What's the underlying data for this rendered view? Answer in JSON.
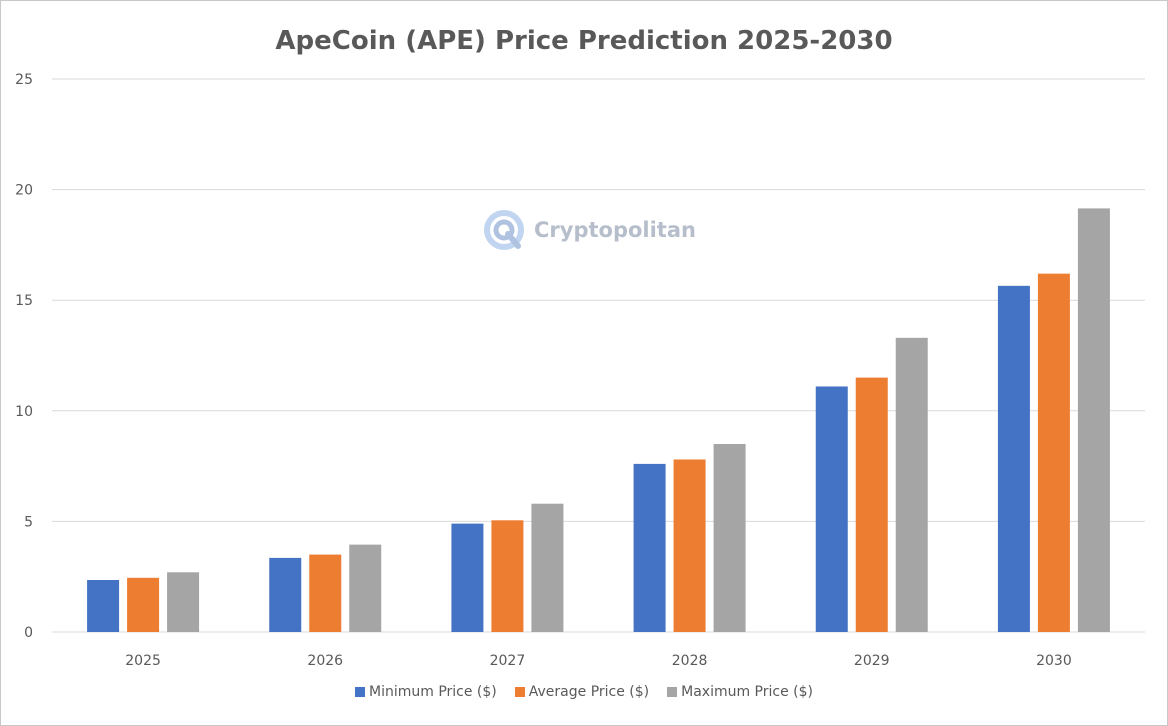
{
  "chart_data": {
    "type": "bar",
    "title": "ApeCoin (APE) Price Prediction 2025-2030",
    "categories": [
      "2025",
      "2026",
      "2027",
      "2028",
      "2029",
      "2030"
    ],
    "series": [
      {
        "name": "Minimum Price ($)",
        "color": "#4472c4",
        "values": [
          2.35,
          3.35,
          4.9,
          7.6,
          11.1,
          15.65
        ]
      },
      {
        "name": "Average Price ($)",
        "color": "#ed7d31",
        "values": [
          2.45,
          3.5,
          5.05,
          7.8,
          11.5,
          16.2
        ]
      },
      {
        "name": "Maximum Price ($)",
        "color": "#a5a5a5",
        "values": [
          2.7,
          3.95,
          5.8,
          8.5,
          13.3,
          19.15
        ]
      }
    ],
    "ylim": [
      0,
      25
    ],
    "yticks": [
      "0",
      "5",
      "10",
      "15",
      "20",
      "25"
    ],
    "grid": true,
    "legend_position": "bottom"
  },
  "watermark": {
    "text": "Cryptopolitan",
    "icon": "cryptopolitan-logo-icon"
  }
}
